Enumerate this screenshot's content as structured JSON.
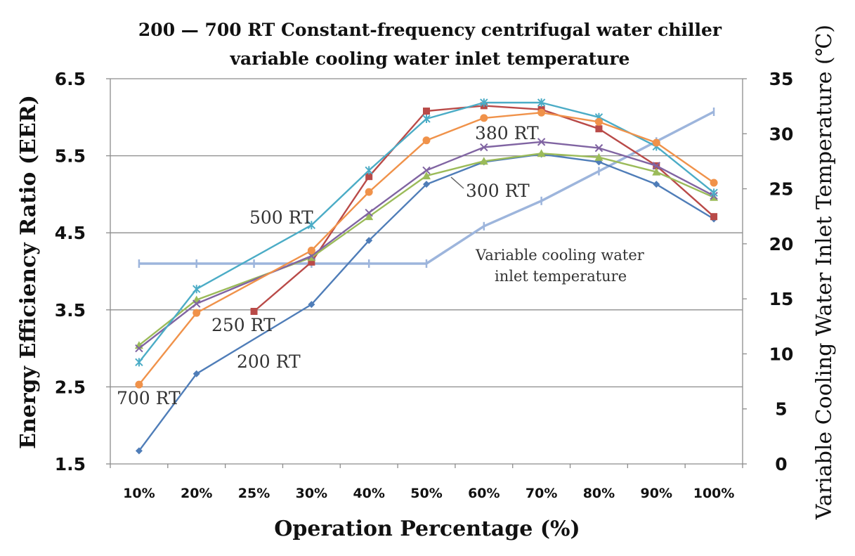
{
  "chart_data": {
    "type": "line",
    "title": "200 — 700 RT Constant-frequency centrifugal water chiller",
    "subtitle": "variable cooling water inlet temperature",
    "xlabel": "Operation Percentage (%)",
    "ylabel": "Energy Efficiency Ratio (EER)",
    "y2label": "Variable Cooling Water Inlet Temperature (℃)",
    "categories": [
      "10%",
      "20%",
      "25%",
      "30%",
      "40%",
      "50%",
      "60%",
      "70%",
      "80%",
      "90%",
      "100%"
    ],
    "ylim": [
      1.5,
      6.5
    ],
    "yticks": [
      "1.5",
      "2.5",
      "3.5",
      "4.5",
      "5.5",
      "6.5"
    ],
    "y2lim": [
      0,
      35
    ],
    "y2ticks": [
      "0",
      "5",
      "10",
      "15",
      "20",
      "25",
      "30",
      "35"
    ],
    "grid": "horizontal",
    "series": [
      {
        "name": "200 RT",
        "label": "200 RT",
        "color": "#4F7DB8",
        "marker": "diamond",
        "axis": "left",
        "values": [
          1.67,
          2.67,
          null,
          3.57,
          4.4,
          5.13,
          5.42,
          5.52,
          5.42,
          5.13,
          4.68
        ]
      },
      {
        "name": "250 RT",
        "label": "250 RT",
        "color": "#B94A48",
        "marker": "square",
        "axis": "left",
        "values": [
          null,
          null,
          3.48,
          4.12,
          5.23,
          6.08,
          6.15,
          6.1,
          5.85,
          5.37,
          4.71
        ]
      },
      {
        "name": "300 RT",
        "label": "300 RT",
        "color": "#9BBB59",
        "marker": "triangle",
        "axis": "left",
        "values": [
          3.04,
          3.63,
          null,
          4.18,
          4.71,
          5.24,
          5.43,
          5.53,
          5.48,
          5.29,
          4.96
        ]
      },
      {
        "name": "380 RT",
        "label": "380 RT",
        "color": "#8064A2",
        "marker": "x",
        "axis": "left",
        "values": [
          3.0,
          3.58,
          null,
          4.2,
          4.76,
          5.31,
          5.61,
          5.68,
          5.6,
          5.37,
          4.98
        ]
      },
      {
        "name": "500 RT",
        "label": "500 RT",
        "color": "#4BACC6",
        "marker": "star",
        "axis": "left",
        "values": [
          2.82,
          3.77,
          null,
          4.6,
          5.31,
          5.98,
          6.19,
          6.19,
          6.0,
          5.62,
          5.02
        ]
      },
      {
        "name": "700 RT",
        "label": "700 RT",
        "color": "#F0924A",
        "marker": "circle",
        "axis": "left",
        "values": [
          2.53,
          3.46,
          null,
          4.27,
          5.03,
          5.7,
          5.99,
          6.06,
          5.94,
          5.67,
          5.15
        ]
      },
      {
        "name": "Variable cooling water inlet temperature",
        "label_line1": "Variable cooling water",
        "label_line2": "inlet temperature",
        "color": "#9DB5DC",
        "marker": "bar",
        "axis": "right",
        "values": [
          18.2,
          18.2,
          18.2,
          18.2,
          18.2,
          18.2,
          21.6,
          23.9,
          26.6,
          29.3,
          32.0
        ]
      }
    ],
    "annotations": {
      "label_200": "200 RT",
      "label_250": "250 RT",
      "label_300": "300 RT",
      "label_380": "380 RT",
      "label_500": "500 RT",
      "label_700": "700 RT",
      "label_temp_1": "Variable cooling water",
      "label_temp_2": "inlet temperature"
    }
  }
}
